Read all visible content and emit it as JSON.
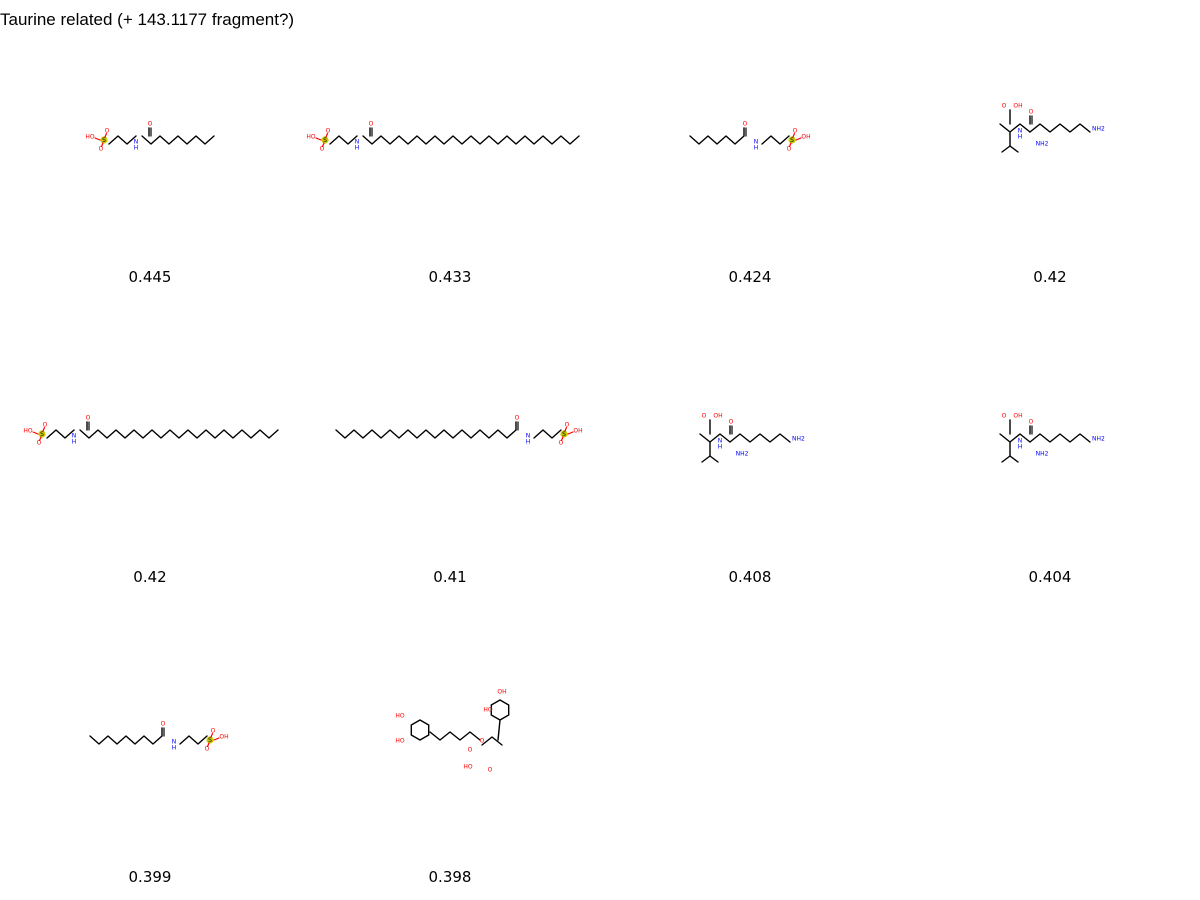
{
  "header": {
    "title": "Taurine related (+ 143.1177 fragment?)"
  },
  "colors": {
    "oxygen": "#ff0000",
    "nitrogen": "#0000ff",
    "sulfur": "#cccc00",
    "bond": "#000000"
  },
  "atom_labels": {
    "hydroxyl": "HO",
    "hydroxyl_right": "OH",
    "oxygen": "O",
    "sulfur": "S",
    "amine_h": "H",
    "amine": "NH2"
  },
  "molecules": [
    {
      "score": "0.445"
    },
    {
      "score": "0.433"
    },
    {
      "score": "0.424"
    },
    {
      "score": "0.42"
    },
    {
      "score": "0.42"
    },
    {
      "score": "0.41"
    },
    {
      "score": "0.408"
    },
    {
      "score": "0.404"
    },
    {
      "score": "0.399"
    },
    {
      "score": "0.398"
    }
  ]
}
